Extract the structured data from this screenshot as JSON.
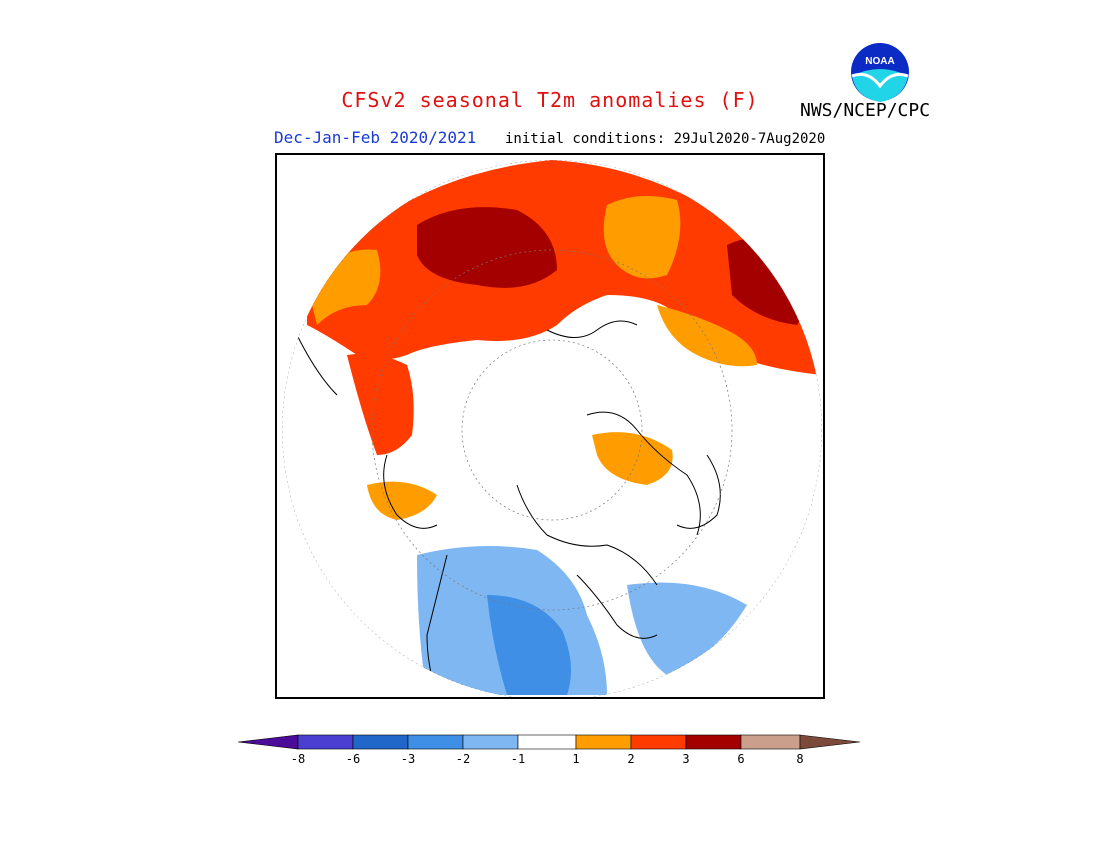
{
  "header": {
    "title": "CFSv2 seasonal T2m anomalies (F)",
    "season": "Dec-Jan-Feb 2020/2021",
    "initial_conditions": "initial conditions: 29Jul2020-7Aug2020",
    "agency": "NWS/NCEP/CPC",
    "logo_text": "NOAA"
  },
  "colors": {
    "title": "#e01010",
    "season": "#1a3ad8",
    "levels": [
      "#4b0c9a",
      "#4a3fd0",
      "#2166c9",
      "#3f8fe6",
      "#7fb7f2",
      "#ffffff",
      "#ff9d00",
      "#ff3b00",
      "#a50000",
      "#caa08d",
      "#7b4a3a"
    ]
  },
  "colorbar": {
    "ticks": [
      "-8",
      "-6",
      "-3",
      "-2",
      "-1",
      "1",
      "2",
      "3",
      "6",
      "8"
    ]
  }
}
